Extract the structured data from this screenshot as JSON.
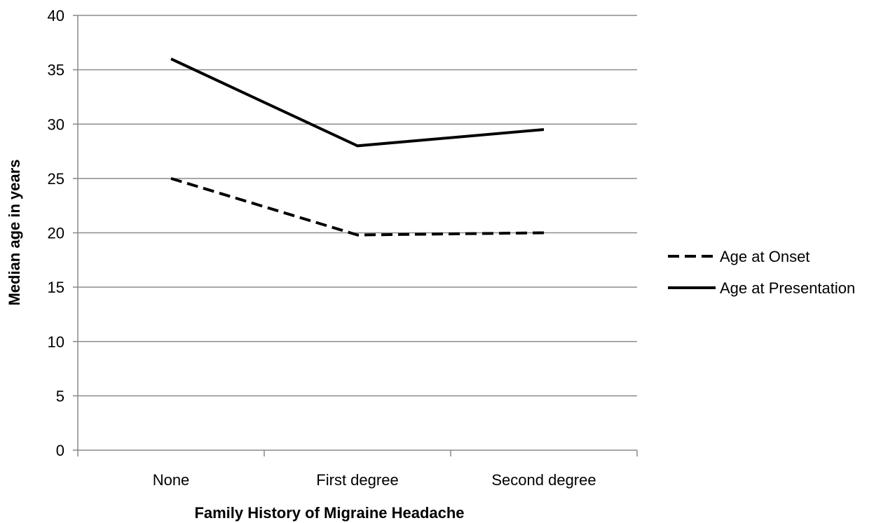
{
  "chart_data": {
    "type": "line",
    "title": "",
    "xlabel": "Family History of Migraine Headache",
    "ylabel": "Median age in years",
    "categories": [
      "None",
      "First degree",
      "Second degree"
    ],
    "ylim": [
      0,
      40
    ],
    "yticks": [
      0,
      5,
      10,
      15,
      20,
      25,
      30,
      35,
      40
    ],
    "grid": "horizontal",
    "legend_position": "right",
    "series": [
      {
        "name": "Age at Onset",
        "values": [
          25,
          19.8,
          20
        ],
        "style": "dashed",
        "color": "#000000"
      },
      {
        "name": "Age at Presentation",
        "values": [
          36,
          28,
          29.5
        ],
        "style": "solid",
        "color": "#000000"
      }
    ]
  }
}
